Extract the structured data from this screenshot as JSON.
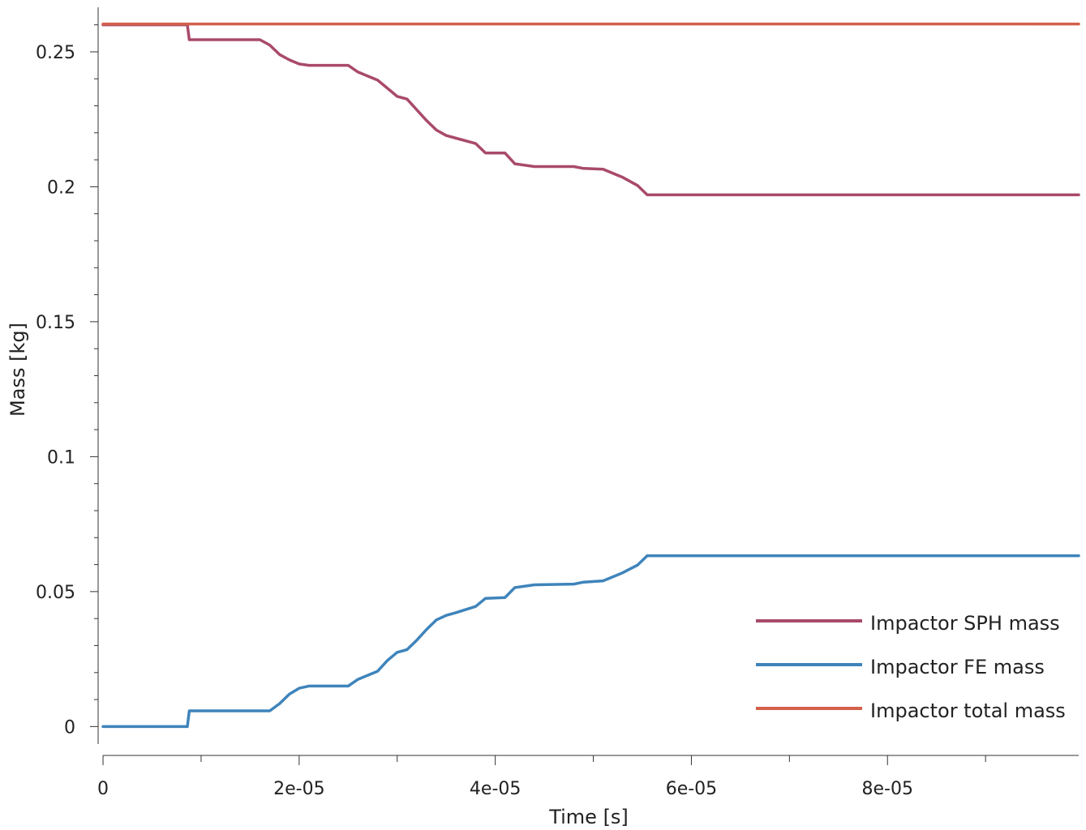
{
  "chart_data": {
    "type": "line",
    "xlabel": "Time [s]",
    "ylabel": "Mass [kg]",
    "xlim": [
      -5e-07,
      9.95e-05
    ],
    "ylim": [
      -0.0065,
      0.2665
    ],
    "x_ticks": [
      0,
      2e-05,
      4e-05,
      6e-05,
      8e-05
    ],
    "x_tick_labels": [
      "0",
      "2e-05",
      "4e-05",
      "6e-05",
      "8e-05"
    ],
    "x_minor_ticks": [
      1e-05,
      3e-05,
      5e-05,
      7e-05,
      9e-05
    ],
    "y_ticks": [
      0,
      0.05,
      0.1,
      0.15,
      0.2,
      0.25
    ],
    "y_tick_labels": [
      "0",
      "0.05",
      "0.1",
      "0.15",
      "0.2",
      "0.25"
    ],
    "grid": false,
    "legend_position": "bottom-right",
    "series": [
      {
        "name": "Impactor SPH mass",
        "color": "#a94a6a",
        "x": [
          0,
          8.6e-06,
          8.8e-06,
          1.6e-05,
          1.7e-05,
          1.8e-05,
          1.9e-05,
          2e-05,
          2.1e-05,
          2.5e-05,
          2.6e-05,
          2.7e-05,
          2.8e-05,
          2.9e-05,
          3e-05,
          3.1e-05,
          3.2e-05,
          3.3e-05,
          3.4e-05,
          3.5e-05,
          3.6e-05,
          3.8e-05,
          3.9e-05,
          4.1e-05,
          4.2e-05,
          4.4e-05,
          4.8e-05,
          4.9e-05,
          5.1e-05,
          5.3e-05,
          5.45e-05,
          5.55e-05,
          9.95e-05
        ],
        "y": [
          0.26,
          0.26,
          0.2545,
          0.2545,
          0.2525,
          0.249,
          0.247,
          0.2455,
          0.245,
          0.245,
          0.2425,
          0.241,
          0.2395,
          0.2365,
          0.2335,
          0.2325,
          0.2285,
          0.2245,
          0.221,
          0.219,
          0.218,
          0.216,
          0.2125,
          0.2125,
          0.2085,
          0.2075,
          0.2075,
          0.2068,
          0.2065,
          0.2035,
          0.2005,
          0.197,
          0.197
        ]
      },
      {
        "name": "Impactor FE mass",
        "color": "#3f84bb",
        "x": [
          0,
          8.6e-06,
          8.8e-06,
          1.7e-05,
          1.8e-05,
          1.9e-05,
          2e-05,
          2.1e-05,
          2.5e-05,
          2.6e-05,
          2.7e-05,
          2.8e-05,
          2.9e-05,
          3e-05,
          3.1e-05,
          3.2e-05,
          3.3e-05,
          3.4e-05,
          3.5e-05,
          3.6e-05,
          3.8e-05,
          3.9e-05,
          4.1e-05,
          4.2e-05,
          4.4e-05,
          4.8e-05,
          4.9e-05,
          5.1e-05,
          5.3e-05,
          5.45e-05,
          5.55e-05,
          9.95e-05
        ],
        "y": [
          0,
          0,
          0.0058,
          0.0058,
          0.0085,
          0.012,
          0.0142,
          0.015,
          0.015,
          0.0175,
          0.019,
          0.0205,
          0.0245,
          0.0275,
          0.0285,
          0.032,
          0.036,
          0.0395,
          0.0412,
          0.0422,
          0.0445,
          0.0475,
          0.0478,
          0.0515,
          0.0525,
          0.0528,
          0.0535,
          0.054,
          0.057,
          0.0598,
          0.0633,
          0.0633
        ]
      },
      {
        "name": "Impactor total mass",
        "color": "#d4604a",
        "x": [
          0,
          9.95e-05
        ],
        "y": [
          0.2603,
          0.2603
        ]
      }
    ]
  }
}
